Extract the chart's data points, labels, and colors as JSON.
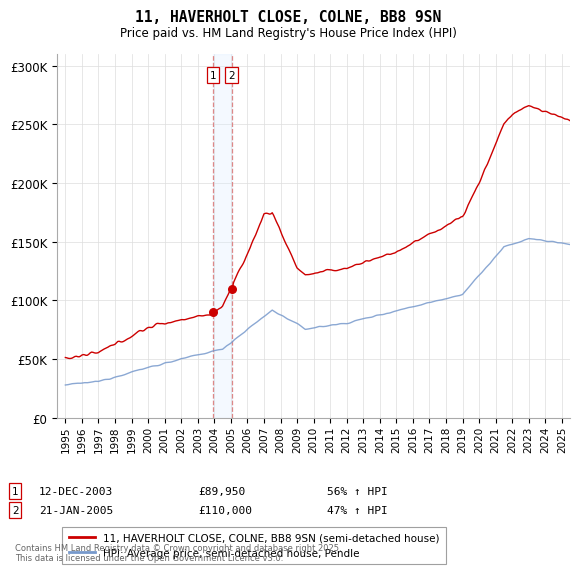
{
  "title": "11, HAVERHOLT CLOSE, COLNE, BB8 9SN",
  "subtitle": "Price paid vs. HM Land Registry's House Price Index (HPI)",
  "background_color": "#ffffff",
  "grid_color": "#dddddd",
  "red_line_color": "#cc0000",
  "blue_line_color": "#7799cc",
  "shaded_color": "#ddeeff",
  "sale1_date_num": 2003.917,
  "sale2_date_num": 2005.05,
  "sale1_price": 89950,
  "sale2_price": 110000,
  "legend_red": "11, HAVERHOLT CLOSE, COLNE, BB8 9SN (semi-detached house)",
  "legend_blue": "HPI: Average price, semi-detached house, Pendle",
  "sale1_date_str": "12-DEC-2003",
  "sale2_date_str": "21-JAN-2005",
  "sale1_price_str": "£89,950",
  "sale2_price_str": "£110,000",
  "sale1_hpi_str": "56% ↑ HPI",
  "sale2_hpi_str": "47% ↑ HPI",
  "footnote": "Contains HM Land Registry data © Crown copyright and database right 2025.\nThis data is licensed under the Open Government Licence v3.0.",
  "ylim_min": 0,
  "ylim_max": 310000,
  "xlim_min": 1994.5,
  "xlim_max": 2025.5,
  "yticks": [
    0,
    50000,
    100000,
    150000,
    200000,
    250000,
    300000
  ],
  "yticklabels": [
    "£0",
    "£50K",
    "£100K",
    "£150K",
    "£200K",
    "£250K",
    "£300K"
  ]
}
